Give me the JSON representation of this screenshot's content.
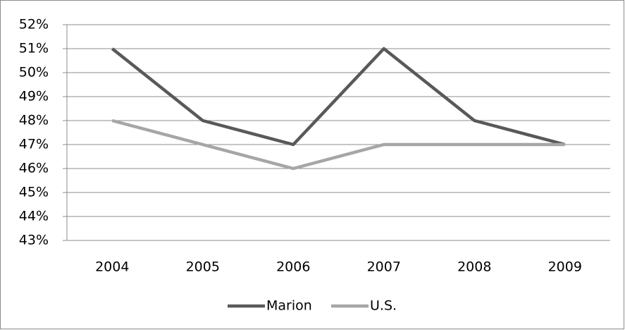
{
  "chart_data": {
    "type": "line",
    "categories": [
      "2004",
      "2005",
      "2006",
      "2007",
      "2008",
      "2009"
    ],
    "series": [
      {
        "name": "Marion",
        "color": "#595959",
        "values": [
          51,
          48,
          47,
          51,
          48,
          47
        ]
      },
      {
        "name": "U.S.",
        "color": "#a6a6a6",
        "values": [
          48,
          47,
          46,
          47,
          47,
          47
        ]
      }
    ],
    "ylim": [
      43,
      52
    ],
    "yticks": [
      {
        "value": 43,
        "label": "43%"
      },
      {
        "value": 44,
        "label": "44%"
      },
      {
        "value": 45,
        "label": "45%"
      },
      {
        "value": 46,
        "label": "46%"
      },
      {
        "value": 47,
        "label": "47%"
      },
      {
        "value": 48,
        "label": "48%"
      },
      {
        "value": 49,
        "label": "49%"
      },
      {
        "value": 50,
        "label": "50%"
      },
      {
        "value": 51,
        "label": "51%"
      },
      {
        "value": 52,
        "label": "52%"
      }
    ],
    "grid": true,
    "legend": "bottom"
  }
}
